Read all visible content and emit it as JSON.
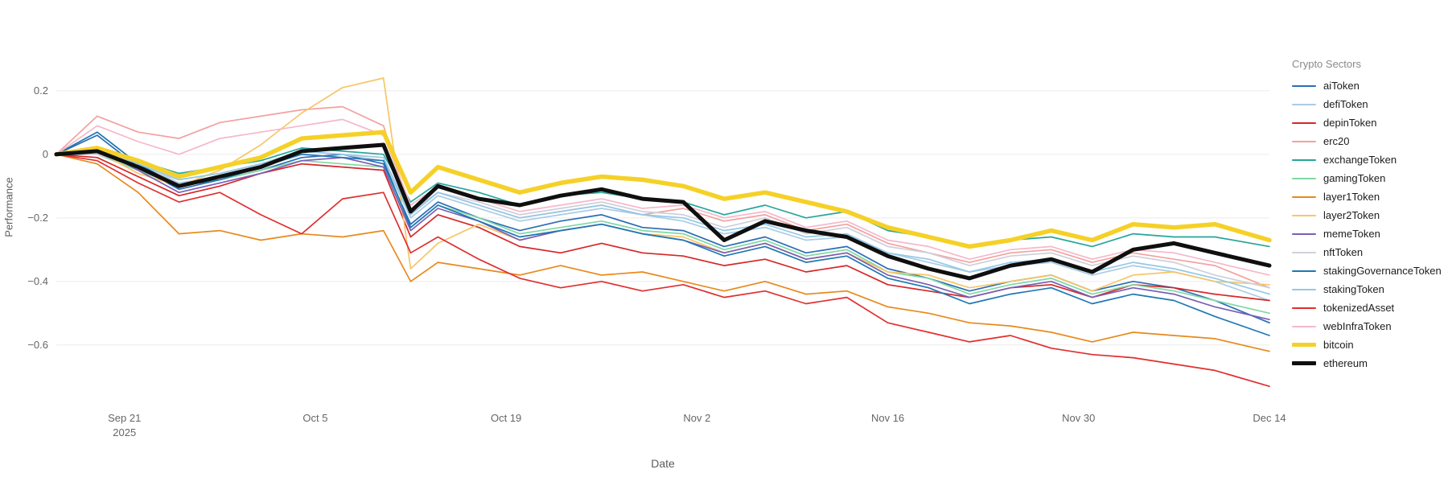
{
  "chart_data": {
    "type": "line",
    "title": "",
    "xlabel": "Date",
    "ylabel": "Performance",
    "legend_title": "Crypto Sectors",
    "grid": true,
    "grid_color": "#ececec",
    "axis_text_color": "#666666",
    "legend_position": "right",
    "x_domain": [
      0,
      89
    ],
    "ylim": [
      -0.76,
      0.43
    ],
    "x_days": [
      0,
      3,
      6,
      9,
      12,
      15,
      18,
      21,
      24,
      26,
      28,
      31,
      34,
      37,
      40,
      43,
      46,
      49,
      52,
      55,
      58,
      61,
      64,
      67,
      70,
      73,
      76,
      79,
      82,
      85,
      89
    ],
    "yticks": [
      {
        "v": 0.2,
        "label": "0.2"
      },
      {
        "v": 0.0,
        "label": "0"
      },
      {
        "v": -0.2,
        "label": "−0.2"
      },
      {
        "v": -0.4,
        "label": "−0.4"
      },
      {
        "v": -0.6,
        "label": "−0.6"
      }
    ],
    "xticks": [
      {
        "day": 5,
        "label": "Sep 21",
        "sublabel": "2025"
      },
      {
        "day": 19,
        "label": "Oct 5"
      },
      {
        "day": 33,
        "label": "Oct 19"
      },
      {
        "day": 47,
        "label": "Nov 2"
      },
      {
        "day": 61,
        "label": "Nov 16"
      },
      {
        "day": 75,
        "label": "Nov 30"
      },
      {
        "day": 89,
        "label": "Dec 14"
      }
    ],
    "series": [
      {
        "name": "aiToken",
        "color": "#2b6cb5",
        "width": 1.7,
        "values": [
          0,
          0.06,
          -0.04,
          -0.11,
          -0.08,
          -0.05,
          -0.01,
          0.0,
          -0.03,
          -0.22,
          -0.15,
          -0.2,
          -0.24,
          -0.21,
          -0.19,
          -0.23,
          -0.24,
          -0.29,
          -0.26,
          -0.31,
          -0.29,
          -0.36,
          -0.39,
          -0.43,
          -0.4,
          -0.38,
          -0.43,
          -0.4,
          -0.42,
          -0.46,
          -0.53
        ]
      },
      {
        "name": "defiToken",
        "color": "#a9cce5",
        "width": 1.7,
        "values": [
          0,
          0.02,
          -0.03,
          -0.09,
          -0.07,
          -0.04,
          0.0,
          -0.01,
          -0.02,
          -0.2,
          -0.13,
          -0.17,
          -0.21,
          -0.19,
          -0.17,
          -0.19,
          -0.21,
          -0.25,
          -0.23,
          -0.27,
          -0.26,
          -0.31,
          -0.34,
          -0.37,
          -0.35,
          -0.34,
          -0.38,
          -0.35,
          -0.37,
          -0.4,
          -0.46
        ]
      },
      {
        "name": "depinToken",
        "color": "#d62728",
        "width": 1.7,
        "values": [
          0,
          -0.01,
          -0.07,
          -0.13,
          -0.1,
          -0.06,
          -0.03,
          -0.04,
          -0.05,
          -0.26,
          -0.19,
          -0.23,
          -0.29,
          -0.31,
          -0.28,
          -0.31,
          -0.32,
          -0.35,
          -0.33,
          -0.37,
          -0.35,
          -0.41,
          -0.43,
          -0.45,
          -0.42,
          -0.41,
          -0.45,
          -0.41,
          -0.42,
          -0.44,
          -0.46
        ]
      },
      {
        "name": "erc20",
        "color": "#f2a2a0",
        "width": 1.7,
        "values": [
          0,
          0.12,
          0.07,
          0.05,
          0.1,
          0.12,
          0.14,
          0.15,
          0.09,
          -0.18,
          -0.12,
          -0.16,
          -0.2,
          -0.18,
          -0.16,
          -0.19,
          -0.17,
          -0.21,
          -0.19,
          -0.24,
          -0.22,
          -0.28,
          -0.31,
          -0.34,
          -0.31,
          -0.3,
          -0.34,
          -0.31,
          -0.33,
          -0.35,
          -0.42
        ]
      },
      {
        "name": "exchangeToken",
        "color": "#26a69a",
        "width": 1.7,
        "values": [
          0,
          0.01,
          -0.02,
          -0.06,
          -0.04,
          -0.02,
          0.02,
          0.01,
          0.0,
          -0.15,
          -0.09,
          -0.12,
          -0.16,
          -0.13,
          -0.12,
          -0.14,
          -0.15,
          -0.19,
          -0.16,
          -0.2,
          -0.18,
          -0.24,
          -0.26,
          -0.29,
          -0.27,
          -0.26,
          -0.29,
          -0.25,
          -0.26,
          -0.26,
          -0.29
        ]
      },
      {
        "name": "gamingToken",
        "color": "#7fd8a4",
        "width": 1.7,
        "values": [
          0,
          0.0,
          -0.05,
          -0.1,
          -0.08,
          -0.05,
          -0.02,
          -0.03,
          -0.04,
          -0.23,
          -0.16,
          -0.2,
          -0.25,
          -0.23,
          -0.21,
          -0.24,
          -0.25,
          -0.3,
          -0.27,
          -0.32,
          -0.3,
          -0.37,
          -0.39,
          -0.44,
          -0.41,
          -0.39,
          -0.44,
          -0.41,
          -0.43,
          -0.46,
          -0.5
        ]
      },
      {
        "name": "layer1Token",
        "color": "#e8891c",
        "width": 1.7,
        "values": [
          0,
          -0.03,
          -0.12,
          -0.25,
          -0.24,
          -0.27,
          -0.25,
          -0.26,
          -0.24,
          -0.4,
          -0.34,
          -0.36,
          -0.38,
          -0.35,
          -0.38,
          -0.37,
          -0.4,
          -0.43,
          -0.4,
          -0.44,
          -0.43,
          -0.48,
          -0.5,
          -0.53,
          -0.54,
          -0.56,
          -0.59,
          -0.56,
          -0.57,
          -0.58,
          -0.62
        ]
      },
      {
        "name": "layer2Token",
        "color": "#f7c568",
        "width": 1.7,
        "values": [
          0,
          0.01,
          -0.06,
          -0.1,
          -0.05,
          0.03,
          0.13,
          0.21,
          0.24,
          -0.36,
          -0.28,
          -0.22,
          -0.27,
          -0.24,
          -0.22,
          -0.25,
          -0.26,
          -0.31,
          -0.28,
          -0.33,
          -0.31,
          -0.37,
          -0.38,
          -0.42,
          -0.4,
          -0.38,
          -0.43,
          -0.38,
          -0.37,
          -0.4,
          -0.41
        ]
      },
      {
        "name": "memeToken",
        "color": "#7a5fb5",
        "width": 1.7,
        "values": [
          0,
          0.02,
          -0.05,
          -0.12,
          -0.09,
          -0.06,
          -0.02,
          -0.01,
          -0.04,
          -0.24,
          -0.17,
          -0.21,
          -0.27,
          -0.24,
          -0.22,
          -0.25,
          -0.27,
          -0.31,
          -0.28,
          -0.33,
          -0.31,
          -0.38,
          -0.41,
          -0.45,
          -0.42,
          -0.4,
          -0.45,
          -0.42,
          -0.44,
          -0.48,
          -0.52
        ]
      },
      {
        "name": "nftToken",
        "color": "#cfcfdc",
        "width": 1.7,
        "values": [
          0,
          0.0,
          -0.04,
          -0.08,
          -0.06,
          -0.03,
          0.01,
          0.0,
          -0.02,
          -0.18,
          -0.12,
          -0.15,
          -0.19,
          -0.17,
          -0.15,
          -0.18,
          -0.19,
          -0.23,
          -0.2,
          -0.25,
          -0.23,
          -0.29,
          -0.31,
          -0.35,
          -0.32,
          -0.31,
          -0.35,
          -0.32,
          -0.34,
          -0.38,
          -0.42
        ]
      },
      {
        "name": "stakingGovernanceToken",
        "color": "#1f77b4",
        "width": 1.7,
        "values": [
          0,
          0.07,
          -0.03,
          -0.1,
          -0.08,
          -0.04,
          0.0,
          -0.01,
          -0.02,
          -0.23,
          -0.16,
          -0.21,
          -0.26,
          -0.24,
          -0.22,
          -0.25,
          -0.27,
          -0.32,
          -0.29,
          -0.34,
          -0.32,
          -0.39,
          -0.42,
          -0.47,
          -0.44,
          -0.42,
          -0.47,
          -0.44,
          -0.46,
          -0.51,
          -0.57
        ]
      },
      {
        "name": "stakingToken",
        "color": "#93c9e8",
        "width": 1.7,
        "values": [
          0,
          0.02,
          -0.03,
          -0.08,
          -0.06,
          -0.03,
          0.01,
          0.0,
          -0.01,
          -0.19,
          -0.12,
          -0.16,
          -0.2,
          -0.18,
          -0.16,
          -0.19,
          -0.2,
          -0.24,
          -0.22,
          -0.26,
          -0.25,
          -0.31,
          -0.33,
          -0.37,
          -0.34,
          -0.33,
          -0.37,
          -0.34,
          -0.36,
          -0.39,
          -0.44
        ]
      },
      {
        "name": "tokenizedAsset",
        "color": "#e02f2f",
        "width": 1.7,
        "values": [
          0,
          -0.02,
          -0.09,
          -0.15,
          -0.12,
          -0.19,
          -0.25,
          -0.14,
          -0.12,
          -0.31,
          -0.26,
          -0.33,
          -0.39,
          -0.42,
          -0.4,
          -0.43,
          -0.41,
          -0.45,
          -0.43,
          -0.47,
          -0.45,
          -0.53,
          -0.56,
          -0.59,
          -0.57,
          -0.61,
          -0.63,
          -0.64,
          -0.66,
          -0.68,
          -0.73
        ]
      },
      {
        "name": "webInfraToken",
        "color": "#f5b8ca",
        "width": 1.7,
        "values": [
          0,
          0.09,
          0.04,
          0.0,
          0.05,
          0.07,
          0.09,
          0.11,
          0.06,
          -0.16,
          -0.1,
          -0.14,
          -0.18,
          -0.16,
          -0.14,
          -0.17,
          -0.16,
          -0.2,
          -0.18,
          -0.23,
          -0.21,
          -0.27,
          -0.29,
          -0.33,
          -0.3,
          -0.29,
          -0.33,
          -0.3,
          -0.31,
          -0.34,
          -0.38
        ]
      },
      {
        "name": "bitcoin",
        "color": "#f5d128",
        "width": 5.5,
        "values": [
          0,
          0.02,
          -0.02,
          -0.07,
          -0.04,
          -0.01,
          0.05,
          0.06,
          0.07,
          -0.12,
          -0.04,
          -0.08,
          -0.12,
          -0.09,
          -0.07,
          -0.08,
          -0.1,
          -0.14,
          -0.12,
          -0.15,
          -0.18,
          -0.23,
          -0.26,
          -0.29,
          -0.27,
          -0.24,
          -0.27,
          -0.22,
          -0.23,
          -0.22,
          -0.27
        ]
      },
      {
        "name": "ethereum",
        "color": "#0f0f0f",
        "width": 5,
        "values": [
          0,
          0.01,
          -0.04,
          -0.1,
          -0.07,
          -0.04,
          0.01,
          0.02,
          0.03,
          -0.18,
          -0.1,
          -0.14,
          -0.16,
          -0.13,
          -0.11,
          -0.14,
          -0.15,
          -0.27,
          -0.21,
          -0.24,
          -0.26,
          -0.32,
          -0.36,
          -0.39,
          -0.35,
          -0.33,
          -0.37,
          -0.3,
          -0.28,
          -0.31,
          -0.35
        ]
      }
    ]
  }
}
